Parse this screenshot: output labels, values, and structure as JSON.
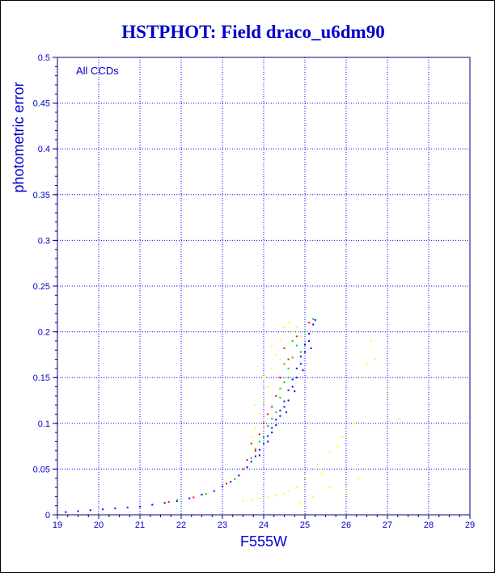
{
  "chart_data": {
    "type": "scatter",
    "title": "HSTPHOT: Field draco_u6dm90",
    "xlabel": "F555W",
    "ylabel": "photometric error",
    "annotation": "All CCDs",
    "xlim": [
      19,
      29
    ],
    "ylim": [
      0,
      0.5
    ],
    "xticks": [
      "19",
      "20",
      "21",
      "22",
      "23",
      "24",
      "25",
      "26",
      "27",
      "28",
      "29"
    ],
    "yticks": [
      "0",
      "0.05",
      "0.1",
      "0.15",
      "0.2",
      "0.25",
      "0.3",
      "0.35",
      "0.4",
      "0.45",
      "0.5"
    ],
    "grid": true,
    "colors": {
      "frame": "#000080",
      "grid": "#0000ff",
      "text": "#0000cc",
      "title": "#0000cc"
    },
    "series": [
      {
        "color": "#0000ff",
        "points": [
          [
            19.2,
            0.003
          ],
          [
            19.5,
            0.004
          ],
          [
            19.8,
            0.005
          ],
          [
            20.1,
            0.006
          ],
          [
            20.4,
            0.007
          ],
          [
            20.7,
            0.008
          ],
          [
            21.0,
            0.009
          ],
          [
            21.3,
            0.011
          ],
          [
            21.6,
            0.013
          ],
          [
            21.9,
            0.015
          ],
          [
            22.2,
            0.018
          ],
          [
            22.5,
            0.022
          ],
          [
            22.8,
            0.026
          ],
          [
            23.0,
            0.031
          ],
          [
            23.2,
            0.036
          ],
          [
            23.4,
            0.043
          ],
          [
            23.6,
            0.052
          ],
          [
            23.7,
            0.058
          ],
          [
            23.8,
            0.064
          ],
          [
            23.9,
            0.071
          ],
          [
            24.0,
            0.078
          ],
          [
            24.1,
            0.086
          ],
          [
            24.2,
            0.095
          ],
          [
            24.3,
            0.104
          ],
          [
            24.4,
            0.114
          ],
          [
            24.5,
            0.124
          ],
          [
            24.6,
            0.136
          ],
          [
            24.7,
            0.148
          ],
          [
            24.8,
            0.16
          ],
          [
            24.9,
            0.173
          ],
          [
            25.0,
            0.186
          ],
          [
            25.1,
            0.198
          ],
          [
            25.2,
            0.208
          ],
          [
            25.25,
            0.213
          ],
          [
            23.9,
            0.065
          ],
          [
            24.1,
            0.08
          ],
          [
            24.3,
            0.098
          ],
          [
            24.5,
            0.118
          ],
          [
            24.7,
            0.14
          ],
          [
            24.9,
            0.165
          ],
          [
            25.1,
            0.19
          ],
          [
            24.6,
            0.125
          ],
          [
            24.8,
            0.15
          ],
          [
            24.2,
            0.09
          ],
          [
            24.4,
            0.108
          ],
          [
            25.0,
            0.178
          ],
          [
            24.55,
            0.112
          ],
          [
            24.75,
            0.135
          ],
          [
            24.95,
            0.158
          ],
          [
            25.15,
            0.182
          ]
        ]
      },
      {
        "color": "#00cc00",
        "points": [
          [
            21.9,
            0.016
          ],
          [
            22.6,
            0.023
          ],
          [
            23.3,
            0.039
          ],
          [
            23.7,
            0.062
          ],
          [
            23.8,
            0.072
          ],
          [
            24.0,
            0.085
          ],
          [
            24.1,
            0.097
          ],
          [
            24.3,
            0.112
          ],
          [
            24.4,
            0.128
          ],
          [
            24.5,
            0.145
          ],
          [
            24.6,
            0.16
          ],
          [
            24.7,
            0.172
          ],
          [
            24.8,
            0.185
          ],
          [
            25.0,
            0.2
          ],
          [
            25.2,
            0.214
          ],
          [
            24.2,
            0.105
          ],
          [
            24.4,
            0.138
          ],
          [
            24.6,
            0.15
          ],
          [
            24.9,
            0.178
          ],
          [
            23.9,
            0.08
          ],
          [
            24.7,
            0.19
          ],
          [
            24.5,
            0.165
          ]
        ]
      },
      {
        "color": "#ff0000",
        "points": [
          [
            21.7,
            0.014
          ],
          [
            22.3,
            0.019
          ],
          [
            23.1,
            0.034
          ],
          [
            23.5,
            0.05
          ],
          [
            23.6,
            0.06
          ],
          [
            23.8,
            0.07
          ],
          [
            23.9,
            0.088
          ],
          [
            24.0,
            0.1
          ],
          [
            24.2,
            0.118
          ],
          [
            24.3,
            0.13
          ],
          [
            24.4,
            0.15
          ],
          [
            24.6,
            0.17
          ],
          [
            24.8,
            0.195
          ],
          [
            25.1,
            0.21
          ],
          [
            24.1,
            0.11
          ],
          [
            24.5,
            0.182
          ],
          [
            23.7,
            0.078
          ]
        ]
      },
      {
        "color": "#ffff00",
        "points": [
          [
            23.8,
            0.095
          ],
          [
            23.9,
            0.11
          ],
          [
            24.0,
            0.125
          ],
          [
            24.1,
            0.14
          ],
          [
            24.2,
            0.16
          ],
          [
            24.3,
            0.175
          ],
          [
            24.4,
            0.19
          ],
          [
            24.5,
            0.205
          ],
          [
            24.6,
            0.21
          ],
          [
            24.7,
            0.2
          ],
          [
            24.9,
            0.195
          ],
          [
            23.7,
            0.085
          ],
          [
            24.0,
            0.15
          ],
          [
            24.2,
            0.185
          ],
          [
            24.4,
            0.17
          ],
          [
            24.8,
            0.205
          ],
          [
            23.8,
            0.12
          ],
          [
            23.5,
            0.015
          ],
          [
            23.7,
            0.017
          ],
          [
            23.9,
            0.018
          ],
          [
            24.1,
            0.019
          ],
          [
            24.3,
            0.021
          ],
          [
            24.5,
            0.023
          ],
          [
            24.6,
            0.026
          ],
          [
            24.8,
            0.03
          ],
          [
            25.0,
            0.04
          ],
          [
            25.3,
            0.055
          ],
          [
            25.6,
            0.068
          ],
          [
            25.9,
            0.085
          ],
          [
            26.2,
            0.1
          ],
          [
            26.5,
            0.165
          ],
          [
            26.6,
            0.19
          ],
          [
            26.7,
            0.17
          ],
          [
            26.4,
            0.15
          ],
          [
            27.3,
            0.105
          ],
          [
            27.0,
            0.13
          ],
          [
            25.8,
            0.075
          ],
          [
            24.9,
            0.012
          ],
          [
            25.2,
            0.02
          ],
          [
            25.6,
            0.03
          ],
          [
            26.0,
            0.025
          ],
          [
            25.4,
            0.045
          ],
          [
            26.3,
            0.04
          ]
        ]
      }
    ]
  }
}
